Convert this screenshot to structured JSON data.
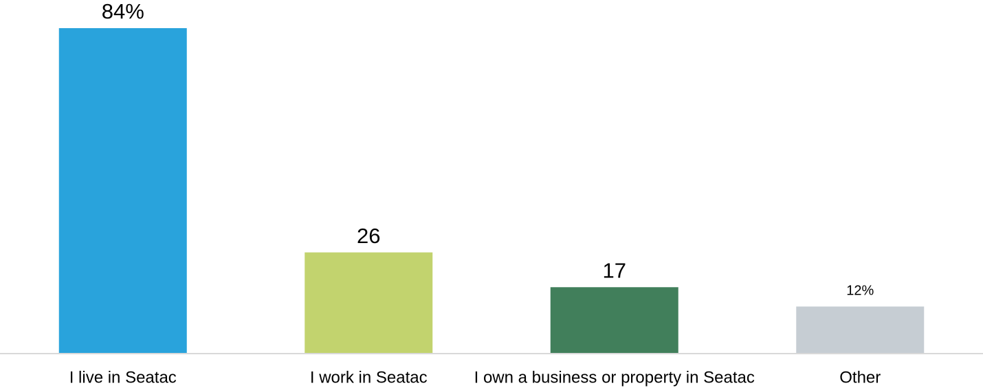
{
  "chart_data": {
    "type": "bar",
    "categories": [
      "I live in Seatac",
      "I work in Seatac",
      "I own a business or property in Seatac",
      "Other"
    ],
    "values": [
      84,
      26,
      17,
      12
    ],
    "value_labels": [
      "84%",
      "26",
      "17",
      "12%"
    ],
    "colors": [
      "#29a3dc",
      "#c2d36e",
      "#417f5b",
      "#c6cdd3"
    ]
  }
}
